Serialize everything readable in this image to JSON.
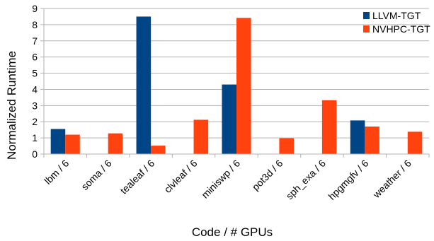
{
  "chart_data": {
    "type": "bar",
    "categories": [
      "lbm / 6",
      "soma / 6",
      "tealeaf / 6",
      "clvleaf / 6",
      "miniswp / 6",
      "pot3d / 6",
      "sph_exa / 6",
      "hpgmgfv / 6",
      "weather / 6"
    ],
    "series": [
      {
        "name": "LLVM-TGT",
        "color": "#004586",
        "values": [
          1.55,
          null,
          8.5,
          null,
          4.3,
          null,
          null,
          2.08,
          null
        ]
      },
      {
        "name": "NVHPC-TGT",
        "color": "#ff420e",
        "values": [
          1.2,
          1.28,
          0.52,
          2.12,
          8.42,
          0.98,
          3.33,
          1.7,
          1.38
        ]
      }
    ],
    "title": "",
    "xlabel": "Code / # GPUs",
    "ylabel": "Normalized Runtime",
    "ylim": [
      0,
      9
    ],
    "yticks": [
      0,
      1,
      2,
      3,
      4,
      5,
      6,
      7,
      8,
      9
    ],
    "grid": true,
    "legend_position": "top-right"
  }
}
